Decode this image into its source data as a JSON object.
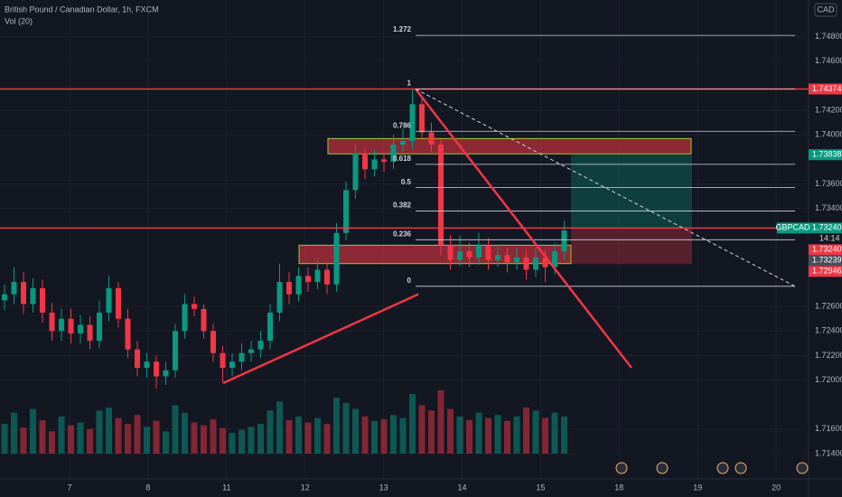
{
  "chart_data": {
    "type": "candlestick",
    "title": "British Pound / Canadian Dollar, 1h, FXCM",
    "indicator": "Vol (20)",
    "currency": "CAD",
    "up_color": "#089981",
    "down_color": "#f23645",
    "ylim": [
      1.7112,
      1.751
    ],
    "yticks": [
      {
        "value": 1.748,
        "label": "1.74800"
      },
      {
        "value": 1.746,
        "label": "1.74600"
      },
      {
        "value": 1.742,
        "label": "1.74200"
      },
      {
        "value": 1.74,
        "label": "1.74000"
      },
      {
        "value": 1.736,
        "label": "1.73600"
      },
      {
        "value": 1.734,
        "label": "1.73400"
      },
      {
        "value": 1.726,
        "label": "1.72600"
      },
      {
        "value": 1.724,
        "label": "1.72400"
      },
      {
        "value": 1.722,
        "label": "1.72200"
      },
      {
        "value": 1.72,
        "label": "1.72000"
      },
      {
        "value": 1.716,
        "label": "1.71600"
      },
      {
        "value": 1.714,
        "label": "1.71400"
      }
    ],
    "grid": true,
    "xtick_labels": [
      "7",
      "8",
      "11",
      "12",
      "13",
      "14",
      "15",
      "18",
      "19",
      "20"
    ],
    "open": [
      1.7265,
      1.727,
      1.728,
      1.7262,
      1.7275,
      1.7255,
      1.724,
      1.725,
      1.7238,
      1.7245,
      1.7232,
      1.7255,
      1.7275,
      1.725,
      1.7225,
      1.721,
      1.7215,
      1.7203,
      1.7208,
      1.724,
      1.7262,
      1.7258,
      1.724,
      1.7222,
      1.721,
      1.7215,
      1.7222,
      1.7225,
      1.7232,
      1.7255,
      1.728,
      1.727,
      1.7285,
      1.728,
      1.729,
      1.7278,
      1.732,
      1.7355,
      1.7385,
      1.7372,
      1.738,
      1.7378,
      1.7392,
      1.7395,
      1.7425,
      1.7402,
      1.7392,
      1.731,
      1.7298,
      1.7305,
      1.73,
      1.731,
      1.7298,
      1.7302,
      1.7296,
      1.73,
      1.729,
      1.73,
      1.7292,
      1.7305
    ],
    "high": [
      1.7278,
      1.7292,
      1.7288,
      1.7283,
      1.7282,
      1.7263,
      1.7258,
      1.7258,
      1.7253,
      1.7252,
      1.7265,
      1.7285,
      1.728,
      1.7258,
      1.7232,
      1.7222,
      1.722,
      1.7215,
      1.7246,
      1.727,
      1.7268,
      1.7262,
      1.7246,
      1.7228,
      1.7222,
      1.723,
      1.7232,
      1.724,
      1.7262,
      1.7295,
      1.7288,
      1.7292,
      1.7292,
      1.7298,
      1.7296,
      1.7328,
      1.7362,
      1.7392,
      1.739,
      1.7388,
      1.7386,
      1.74,
      1.7405,
      1.7437,
      1.743,
      1.741,
      1.7396,
      1.7318,
      1.7318,
      1.7312,
      1.732,
      1.7316,
      1.731,
      1.7308,
      1.7308,
      1.7306,
      1.7308,
      1.7306,
      1.7312,
      1.733
    ],
    "low": [
      1.7257,
      1.7262,
      1.7254,
      1.7255,
      1.7247,
      1.7232,
      1.7232,
      1.723,
      1.723,
      1.7225,
      1.7226,
      1.7248,
      1.7243,
      1.7218,
      1.7203,
      1.7202,
      1.7193,
      1.7196,
      1.7202,
      1.7234,
      1.7252,
      1.7234,
      1.7215,
      1.7198,
      1.7203,
      1.7208,
      1.7215,
      1.7218,
      1.7225,
      1.7248,
      1.7262,
      1.7264,
      1.7272,
      1.7274,
      1.727,
      1.7272,
      1.7314,
      1.7348,
      1.7364,
      1.7366,
      1.737,
      1.7372,
      1.7386,
      1.7388,
      1.7396,
      1.7386,
      1.7302,
      1.729,
      1.7293,
      1.7292,
      1.7294,
      1.729,
      1.7292,
      1.7288,
      1.729,
      1.7282,
      1.7284,
      1.728,
      1.7286,
      1.7298
    ],
    "close": [
      1.727,
      1.728,
      1.7262,
      1.7275,
      1.7255,
      1.724,
      1.725,
      1.7238,
      1.7245,
      1.7232,
      1.7255,
      1.7275,
      1.725,
      1.7225,
      1.721,
      1.7215,
      1.7203,
      1.7208,
      1.724,
      1.7262,
      1.7258,
      1.724,
      1.7222,
      1.721,
      1.7215,
      1.7222,
      1.7225,
      1.7232,
      1.7255,
      1.728,
      1.727,
      1.7285,
      1.728,
      1.729,
      1.7278,
      1.732,
      1.7355,
      1.7385,
      1.7372,
      1.738,
      1.7378,
      1.7392,
      1.7395,
      1.7425,
      1.7402,
      1.7392,
      1.731,
      1.7298,
      1.7305,
      1.73,
      1.731,
      1.7298,
      1.7302,
      1.7296,
      1.73,
      1.729,
      1.73,
      1.7292,
      1.7305,
      1.7322
    ],
    "volume": [
      40,
      55,
      35,
      60,
      45,
      30,
      50,
      38,
      42,
      33,
      58,
      62,
      48,
      40,
      52,
      36,
      44,
      30,
      65,
      55,
      42,
      38,
      46,
      34,
      28,
      32,
      36,
      40,
      58,
      70,
      45,
      50,
      42,
      48,
      40,
      75,
      68,
      60,
      50,
      44,
      46,
      52,
      48,
      80,
      65,
      58,
      85,
      60,
      50,
      45,
      55,
      48,
      52,
      44,
      50,
      62,
      58,
      48,
      55,
      50
    ],
    "horizontal_lines": [
      1.74374,
      1.7324
    ],
    "zones": [
      [
        1.7397,
        1.73845
      ],
      [
        1.731,
        1.7295
      ]
    ],
    "position": {
      "entry": 1.7324,
      "target": 1.73838,
      "stop": 1.72946
    },
    "trendlines": [
      [
        1.71975,
        1.727
      ],
      [
        1.74374,
        1.721
      ]
    ],
    "projection": [
      1.74374,
      1.72765
    ],
    "fib": {
      "levels": [
        1.272,
        1,
        0.786,
        0.618,
        0.5,
        0.382,
        0.236,
        0
      ],
      "high": 1.74374,
      "low": 1.72765
    },
    "price_tags": [
      {
        "value": 1.74374,
        "label": "1.74374",
        "color": "#f23645"
      },
      {
        "value": 1.73838,
        "label": "1.73838",
        "color": "#089981"
      },
      {
        "value": 1.7324,
        "label": "1.73240",
        "color": "#089981",
        "name": "GBPCAD"
      },
      {
        "value": 1.7324,
        "label": "1.73240",
        "color": "#f23645"
      },
      {
        "value": 1.73239,
        "label": "1.73239",
        "color": "#4a4e5a"
      },
      {
        "value": 1.72946,
        "label": "1.72946",
        "color": "#f23645"
      }
    ],
    "countdown": "14:14"
  }
}
